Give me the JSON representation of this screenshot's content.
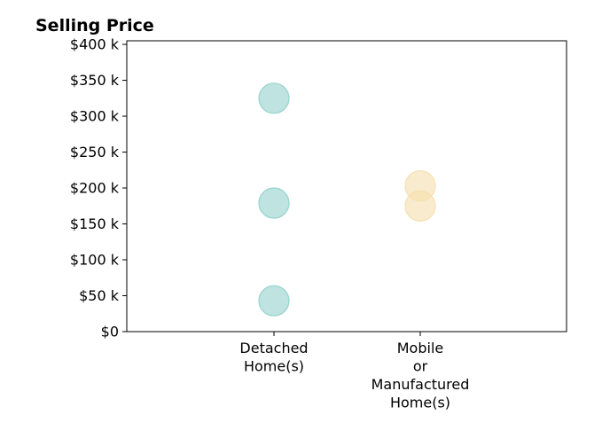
{
  "chart_data": {
    "type": "scatter",
    "title": "Selling Price",
    "xlabel": "",
    "ylabel": "",
    "categories": [
      [
        "Detached",
        "Home(s)"
      ],
      [
        "Mobile",
        "or",
        "Manufactured",
        "Home(s)"
      ]
    ],
    "series": [
      {
        "category_index": 0,
        "color": "#8fcfca",
        "points": [
          325000,
          179000,
          43000
        ]
      },
      {
        "category_index": 1,
        "color": "#f5deaa",
        "points": [
          203000,
          175000
        ]
      }
    ],
    "ylim": [
      0,
      405000
    ],
    "yticks": [
      {
        "value": 0,
        "label": "$0"
      },
      {
        "value": 50000,
        "label": "$50 k"
      },
      {
        "value": 100000,
        "label": "$100 k"
      },
      {
        "value": 150000,
        "label": "$150 k"
      },
      {
        "value": 200000,
        "label": "$200 k"
      },
      {
        "value": 250000,
        "label": "$250 k"
      },
      {
        "value": 300000,
        "label": "$300 k"
      },
      {
        "value": 350000,
        "label": "$350 k"
      },
      {
        "value": 400000,
        "label": "$400 k"
      }
    ],
    "grid": false,
    "legend": "none"
  }
}
